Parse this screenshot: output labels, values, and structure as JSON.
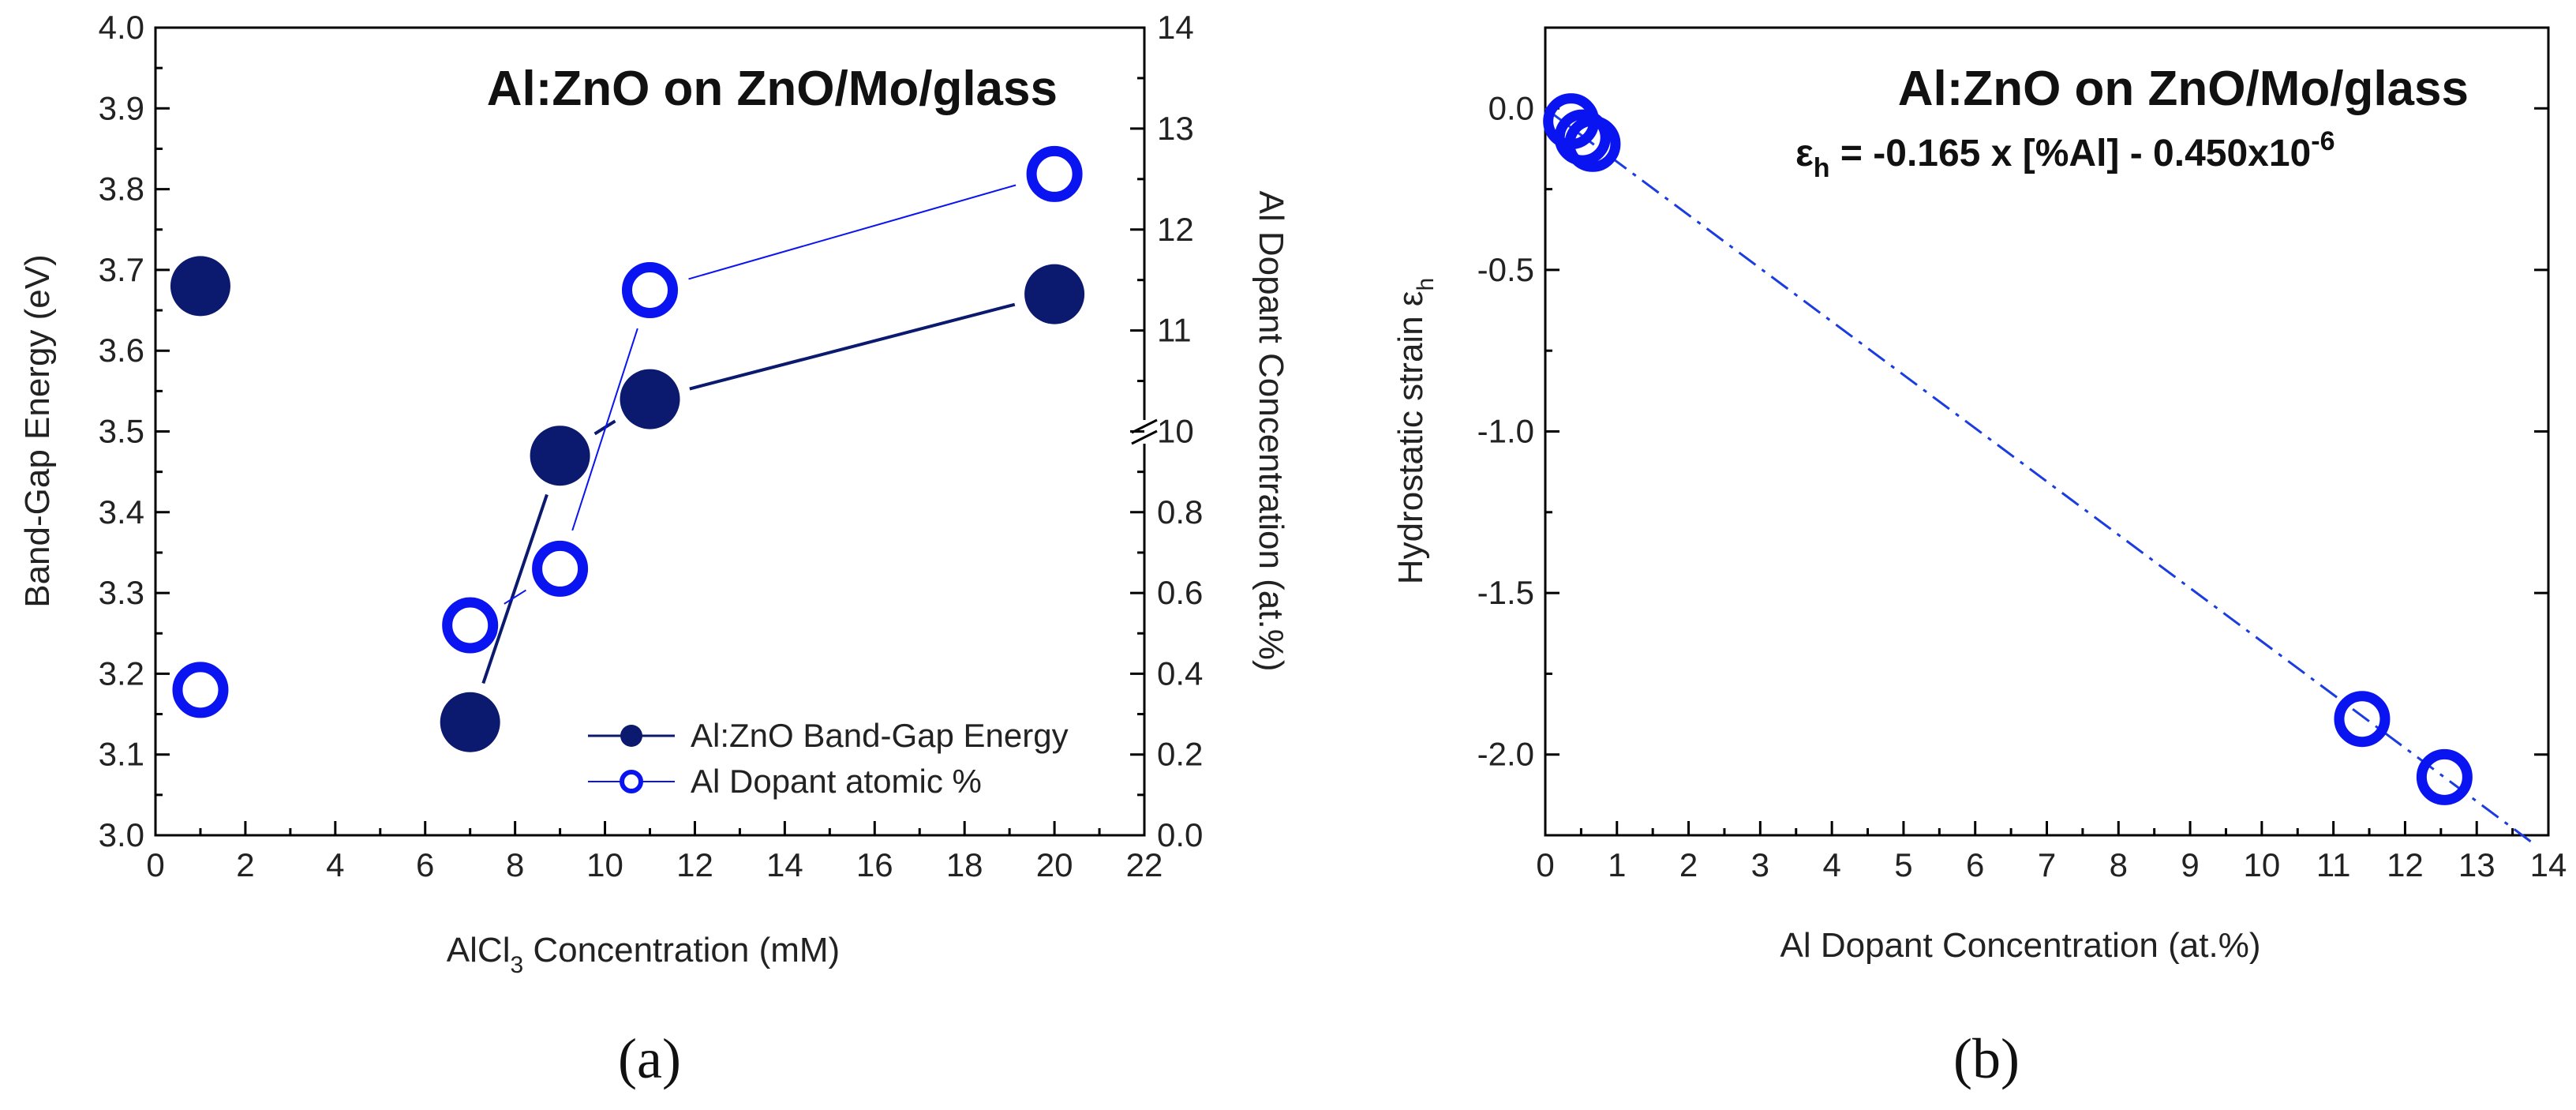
{
  "colors": {
    "dark": "#0b1a6e",
    "blue": "#0a14f0",
    "fit": "#1a3ce0",
    "axis": "#000000"
  },
  "chart_data": [
    {
      "panel": "a",
      "panel_label": "(a)",
      "type": "scatter",
      "title": "Al:ZnO on ZnO/Mo/glass",
      "xlabel": {
        "main": "AlCl",
        "sub": "3",
        "rest": " Concentration (mM)"
      },
      "ylabel": "Band-Gap Energy (eV)",
      "y2label": "Al Dopant Concentration (at.%)",
      "xlim": [
        0,
        22
      ],
      "ylim": [
        3.0,
        4.0
      ],
      "x_ticks": [
        "0",
        "2",
        "4",
        "6",
        "8",
        "10",
        "12",
        "14",
        "16",
        "18",
        "20",
        "22"
      ],
      "y_ticks": [
        "3.0",
        "3.1",
        "3.2",
        "3.3",
        "3.4",
        "3.5",
        "3.6",
        "3.7",
        "3.8",
        "3.9",
        "4.0"
      ],
      "y2_lower_ticks": [
        "0.0",
        "0.2",
        "0.4",
        "0.6",
        "0.8"
      ],
      "y2_upper_ticks": [
        "10",
        "11",
        "12",
        "13",
        "14"
      ],
      "y2_break": "axis break between 1.0 and 10",
      "series": [
        {
          "name": "Al:ZnO Band-Gap Energy",
          "axis": "left",
          "marker": "filled-circle",
          "x": [
            1,
            7,
            9,
            11,
            20
          ],
          "y": [
            3.68,
            3.14,
            3.47,
            3.54,
            3.67
          ],
          "connected_from_index": 1
        },
        {
          "name": "Al Dopant atomic %",
          "axis": "right",
          "marker": "open-circle",
          "x": [
            1,
            7,
            9,
            11,
            20
          ],
          "y": [
            0.36,
            0.52,
            0.66,
            11.4,
            12.55
          ],
          "connected_from_index": 1
        }
      ],
      "legend": [
        "Al:ZnO Band-Gap Energy",
        "Al Dopant atomic %"
      ],
      "legend_position": "bottom-right"
    },
    {
      "panel": "b",
      "panel_label": "(b)",
      "type": "scatter",
      "title": "Al:ZnO on ZnO/Mo/glass",
      "equation": {
        "lhs": "ε",
        "lhs_sub": "h",
        "rhs": " = -0.165 x [%Al] - 0.450x10",
        "rhs_sup": "-6"
      },
      "xlabel": "Al Dopant Concentration (at.%)",
      "ylabel": {
        "main": "Hydrostatic strain ε",
        "sub": "h"
      },
      "xlim": [
        0,
        14
      ],
      "ylim": [
        -2.25,
        0.25
      ],
      "x_ticks": [
        "0",
        "1",
        "2",
        "3",
        "4",
        "5",
        "6",
        "7",
        "8",
        "9",
        "10",
        "11",
        "12",
        "13",
        "14"
      ],
      "y_ticks": [
        "0.0",
        "-0.5",
        "-1.0",
        "-1.5",
        "-2.0"
      ],
      "y_tick_values": [
        0.0,
        -0.5,
        -1.0,
        -1.5,
        -2.0
      ],
      "series": [
        {
          "name": "Hydrostatic strain",
          "marker": "open-circle",
          "x": [
            0.36,
            0.52,
            0.66,
            11.4,
            12.55
          ],
          "y": [
            -0.04,
            -0.09,
            -0.11,
            -1.89,
            -2.07
          ]
        }
      ],
      "fit": {
        "slope": -0.165,
        "intercept": 0,
        "x_range": [
          0,
          13.8
        ],
        "style": "dash-dot"
      }
    }
  ]
}
